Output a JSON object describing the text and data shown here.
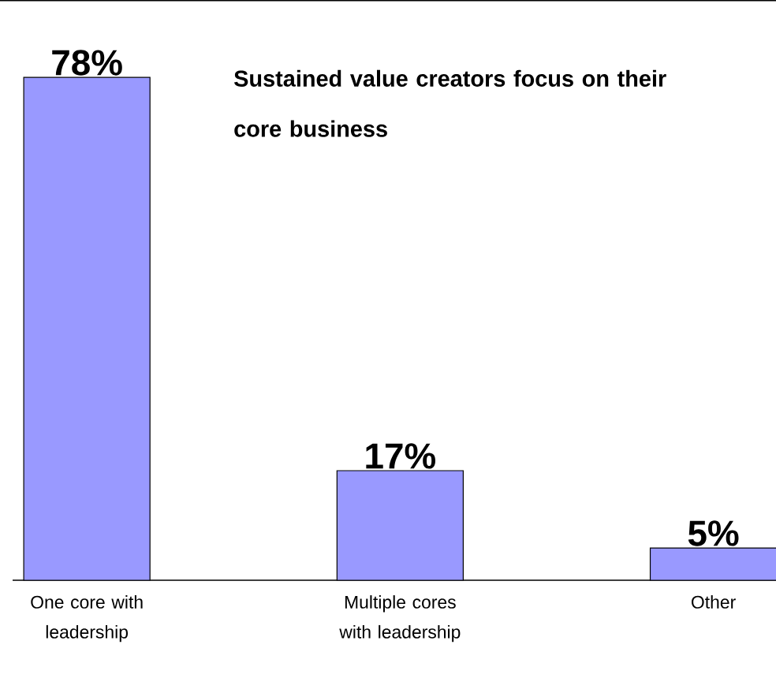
{
  "chart_data": {
    "type": "bar",
    "title": "Sustained value creators focus on their core business",
    "categories": [
      "One core with leadership",
      "Multiple cores with leadership",
      "Other"
    ],
    "values": [
      78,
      17,
      5
    ],
    "value_labels": [
      "78%",
      "17%",
      "5%"
    ],
    "color": "#9999ff",
    "ylim": [
      0,
      90
    ],
    "tick_labels": "x"
  }
}
